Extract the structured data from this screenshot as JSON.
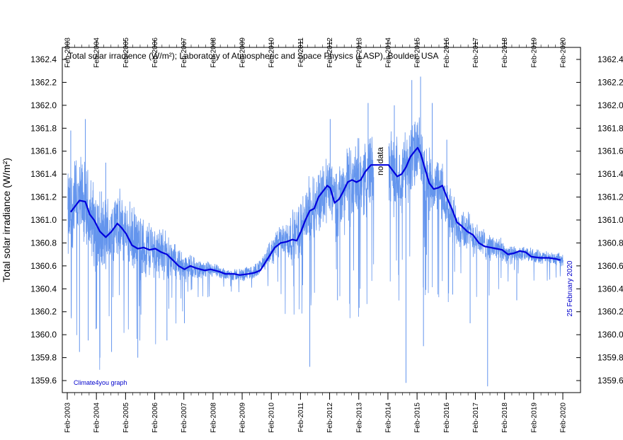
{
  "chart_data": {
    "type": "line",
    "title": "Total solar irradience (W/m²); Laboratory of Atmospheric and Space Physics (LASP), Boulder, USA",
    "ylabel": "Total solar irradiance (W/m²)",
    "xlabel": "",
    "ylim": [
      1359.5,
      1362.5
    ],
    "xlim": [
      2003.08,
      2020.17
    ],
    "y_ticks": [
      1359.6,
      1359.8,
      1360.0,
      1360.2,
      1360.4,
      1360.6,
      1360.8,
      1361.0,
      1361.2,
      1361.4,
      1361.6,
      1361.8,
      1362.0,
      1362.2,
      1362.4
    ],
    "y_tick_labels": [
      "1359.6",
      "1359.8",
      "1360.0",
      "1360.2",
      "1360.4",
      "1360.6",
      "1360.8",
      "1361.0",
      "1361.2",
      "1361.4",
      "1361.6",
      "1361.8",
      "1362.0",
      "1362.2",
      "1362.4"
    ],
    "x_ticks": [
      2003.08,
      2004.08,
      2005.08,
      2006.08,
      2007.08,
      2008.08,
      2009.08,
      2010.08,
      2011.08,
      2012.08,
      2013.08,
      2014.08,
      2015.08,
      2016.08,
      2017.08,
      2018.08,
      2019.08,
      2020.08
    ],
    "x_tick_labels": [
      "Feb-2003",
      "Feb-2004",
      "Feb-2005",
      "Feb-2006",
      "Feb-2007",
      "Feb-2008",
      "Feb-2009",
      "Feb-2010",
      "Feb-2011",
      "Feb-2012",
      "Feb-2013",
      "Feb-2014",
      "Feb-2015",
      "Feb-2016",
      "Feb-2017",
      "Feb-2018",
      "Feb-2019",
      "Feb-2020"
    ],
    "gap": {
      "start": 2013.6,
      "end": 2014.1,
      "label": "no data"
    },
    "series": [
      {
        "style": "daily",
        "color": "#6495ed",
        "baseline": [
          [
            2003.1,
            1361.0
          ],
          [
            2003.3,
            1361.15
          ],
          [
            2003.6,
            1361.15
          ],
          [
            2003.9,
            1361.0
          ],
          [
            2004.3,
            1360.85
          ],
          [
            2004.8,
            1360.95
          ],
          [
            2005.2,
            1360.85
          ],
          [
            2005.6,
            1360.75
          ],
          [
            2006.0,
            1360.75
          ],
          [
            2006.5,
            1360.7
          ],
          [
            2007.0,
            1360.6
          ],
          [
            2007.5,
            1360.58
          ],
          [
            2008.0,
            1360.56
          ],
          [
            2008.5,
            1360.53
          ],
          [
            2009.0,
            1360.52
          ],
          [
            2009.5,
            1360.55
          ],
          [
            2009.9,
            1360.65
          ],
          [
            2010.3,
            1360.8
          ],
          [
            2010.9,
            1360.85
          ],
          [
            2011.3,
            1361.05
          ],
          [
            2011.8,
            1361.2
          ],
          [
            2012.0,
            1361.3
          ],
          [
            2012.3,
            1361.15
          ],
          [
            2012.7,
            1361.3
          ],
          [
            2013.1,
            1361.35
          ],
          [
            2013.55,
            1361.45
          ],
          [
            2014.1,
            1361.45
          ],
          [
            2014.4,
            1361.38
          ],
          [
            2014.8,
            1361.5
          ],
          [
            2015.1,
            1361.6
          ],
          [
            2015.4,
            1361.35
          ],
          [
            2015.9,
            1361.25
          ],
          [
            2016.3,
            1361.0
          ],
          [
            2016.8,
            1360.9
          ],
          [
            2017.3,
            1360.8
          ],
          [
            2017.8,
            1360.75
          ],
          [
            2018.3,
            1360.7
          ],
          [
            2018.8,
            1360.7
          ],
          [
            2019.3,
            1360.68
          ],
          [
            2020.1,
            1360.65
          ]
        ],
        "spread": [
          [
            2003.1,
            0.5
          ],
          [
            2004.5,
            0.4
          ],
          [
            2006.0,
            0.3
          ],
          [
            2007.5,
            0.1
          ],
          [
            2008.5,
            0.06
          ],
          [
            2009.8,
            0.08
          ],
          [
            2011.0,
            0.3
          ],
          [
            2012.5,
            0.4
          ],
          [
            2014.5,
            0.4
          ],
          [
            2015.5,
            0.35
          ],
          [
            2016.5,
            0.25
          ],
          [
            2017.5,
            0.15
          ],
          [
            2018.5,
            0.08
          ],
          [
            2020.1,
            0.06
          ]
        ],
        "dips": [
          [
            2003.5,
            1359.85
          ],
          [
            2003.8,
            1359.95
          ],
          [
            2004.2,
            1359.8
          ],
          [
            2004.6,
            1359.85
          ],
          [
            2005.5,
            1359.8
          ],
          [
            2006.5,
            1359.95
          ],
          [
            2007.1,
            1360.1
          ],
          [
            2011.4,
            1359.72
          ],
          [
            2012.35,
            1360.3
          ],
          [
            2014.7,
            1359.58
          ],
          [
            2015.3,
            1359.9
          ],
          [
            2016.3,
            1360.35
          ],
          [
            2016.9,
            1360.1
          ],
          [
            2017.5,
            1359.55
          ],
          [
            2018.5,
            1360.3
          ]
        ],
        "peaks": [
          [
            2003.2,
            1361.78
          ],
          [
            2003.7,
            1361.88
          ],
          [
            2004.4,
            1361.5
          ],
          [
            2012.1,
            1361.88
          ],
          [
            2013.4,
            1362.02
          ],
          [
            2014.3,
            1362.0
          ],
          [
            2014.9,
            1362.22
          ],
          [
            2015.2,
            1362.25
          ],
          [
            2015.6,
            1362.02
          ],
          [
            2016.1,
            1361.7
          ]
        ]
      },
      {
        "style": "running-mean",
        "color": "#0000dd",
        "points": [
          [
            2003.2,
            1361.07
          ],
          [
            2003.35,
            1361.12
          ],
          [
            2003.5,
            1361.17
          ],
          [
            2003.7,
            1361.16
          ],
          [
            2003.85,
            1361.05
          ],
          [
            2004.0,
            1361.0
          ],
          [
            2004.2,
            1360.9
          ],
          [
            2004.4,
            1360.85
          ],
          [
            2004.6,
            1360.9
          ],
          [
            2004.8,
            1360.97
          ],
          [
            2004.95,
            1360.93
          ],
          [
            2005.1,
            1360.88
          ],
          [
            2005.3,
            1360.78
          ],
          [
            2005.5,
            1360.75
          ],
          [
            2005.7,
            1360.76
          ],
          [
            2005.9,
            1360.74
          ],
          [
            2006.1,
            1360.75
          ],
          [
            2006.3,
            1360.72
          ],
          [
            2006.5,
            1360.7
          ],
          [
            2006.7,
            1360.65
          ],
          [
            2006.9,
            1360.6
          ],
          [
            2007.1,
            1360.57
          ],
          [
            2007.3,
            1360.6
          ],
          [
            2007.5,
            1360.58
          ],
          [
            2007.8,
            1360.56
          ],
          [
            2008.0,
            1360.57
          ],
          [
            2008.3,
            1360.55
          ],
          [
            2008.5,
            1360.53
          ],
          [
            2008.8,
            1360.53
          ],
          [
            2009.0,
            1360.52
          ],
          [
            2009.3,
            1360.53
          ],
          [
            2009.5,
            1360.54
          ],
          [
            2009.7,
            1360.56
          ],
          [
            2009.85,
            1360.62
          ],
          [
            2010.0,
            1360.68
          ],
          [
            2010.2,
            1360.76
          ],
          [
            2010.4,
            1360.8
          ],
          [
            2010.6,
            1360.81
          ],
          [
            2010.8,
            1360.83
          ],
          [
            2010.95,
            1360.82
          ],
          [
            2011.1,
            1360.9
          ],
          [
            2011.25,
            1361.0
          ],
          [
            2011.4,
            1361.08
          ],
          [
            2011.55,
            1361.1
          ],
          [
            2011.7,
            1361.2
          ],
          [
            2011.85,
            1361.25
          ],
          [
            2012.0,
            1361.3
          ],
          [
            2012.1,
            1361.28
          ],
          [
            2012.25,
            1361.15
          ],
          [
            2012.4,
            1361.18
          ],
          [
            2012.55,
            1361.25
          ],
          [
            2012.7,
            1361.33
          ],
          [
            2012.85,
            1361.35
          ],
          [
            2013.0,
            1361.33
          ],
          [
            2013.15,
            1361.35
          ],
          [
            2013.3,
            1361.42
          ],
          [
            2013.5,
            1361.48
          ],
          [
            2014.1,
            1361.48
          ],
          [
            2014.25,
            1361.43
          ],
          [
            2014.4,
            1361.38
          ],
          [
            2014.55,
            1361.4
          ],
          [
            2014.7,
            1361.46
          ],
          [
            2014.85,
            1361.55
          ],
          [
            2015.0,
            1361.6
          ],
          [
            2015.1,
            1361.63
          ],
          [
            2015.2,
            1361.58
          ],
          [
            2015.35,
            1361.45
          ],
          [
            2015.5,
            1361.32
          ],
          [
            2015.65,
            1361.27
          ],
          [
            2015.8,
            1361.28
          ],
          [
            2015.95,
            1361.3
          ],
          [
            2016.1,
            1361.2
          ],
          [
            2016.3,
            1361.08
          ],
          [
            2016.45,
            1360.98
          ],
          [
            2016.6,
            1360.95
          ],
          [
            2016.8,
            1360.9
          ],
          [
            2017.0,
            1360.87
          ],
          [
            2017.2,
            1360.8
          ],
          [
            2017.4,
            1360.77
          ],
          [
            2017.6,
            1360.76
          ],
          [
            2017.8,
            1360.75
          ],
          [
            2018.0,
            1360.74
          ],
          [
            2018.2,
            1360.7
          ],
          [
            2018.4,
            1360.71
          ],
          [
            2018.6,
            1360.73
          ],
          [
            2018.8,
            1360.72
          ],
          [
            2019.0,
            1360.68
          ],
          [
            2019.3,
            1360.67
          ],
          [
            2019.6,
            1360.67
          ],
          [
            2019.85,
            1360.66
          ],
          [
            2020.0,
            1360.65
          ]
        ]
      }
    ]
  },
  "annotations": {
    "credit": "Climate4you graph",
    "date": "25 February 2020"
  }
}
